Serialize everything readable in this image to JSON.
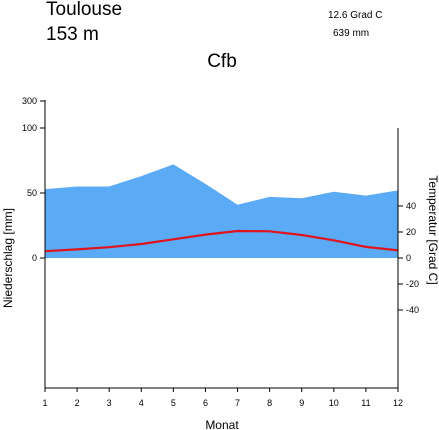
{
  "header": {
    "station": "Toulouse",
    "elevation": "153  m",
    "mean_temperature": "12.6 Grad C",
    "annual_precipitation": "639 mm",
    "climate_class": "Cfb"
  },
  "chart_data": {
    "type": "area",
    "x": [
      1,
      2,
      3,
      4,
      5,
      6,
      7,
      8,
      9,
      10,
      11,
      12
    ],
    "xlabel": "Monat",
    "y_left_label": "Niederschlag [mm]",
    "y_right_label": "Temperatur [Grad C]",
    "precip_ticks": [
      "0",
      "50",
      "100",
      "300"
    ],
    "temp_ticks": [
      "40",
      "20",
      "0",
      "-20",
      "-40"
    ],
    "series": [
      {
        "axis": "left",
        "values": [
          53,
          55,
          55,
          63,
          72,
          57,
          41,
          47,
          46,
          51,
          48,
          52
        ],
        "color": "#5aaaf5"
      },
      {
        "axis": "right",
        "values": [
          5.2,
          6.6,
          8.3,
          10.8,
          14.4,
          18.0,
          20.8,
          20.5,
          17.7,
          13.6,
          8.5,
          5.9
        ],
        "color": "#e0141e"
      }
    ],
    "precip_ylim": [
      0,
      100
    ],
    "temp_ylim": [
      -50,
      50
    ],
    "grid": false
  }
}
